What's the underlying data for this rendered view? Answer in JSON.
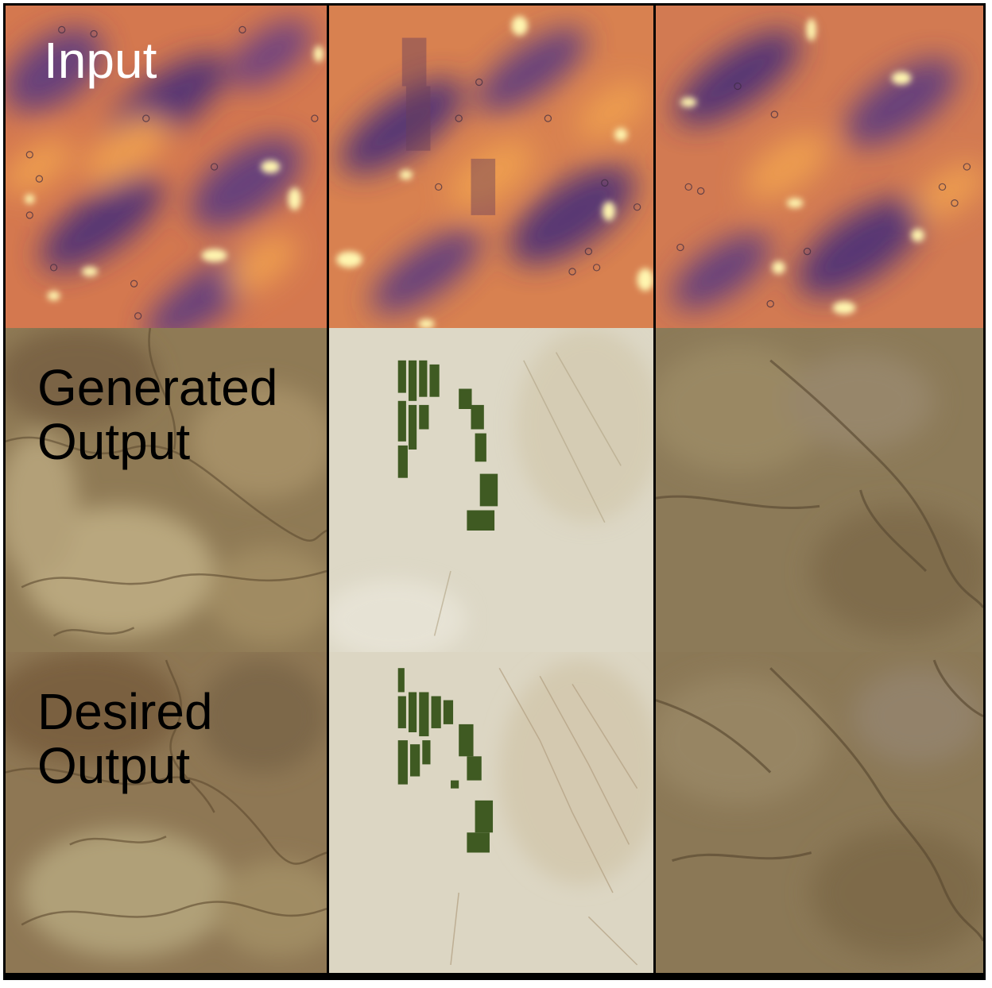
{
  "rows": {
    "input": {
      "label": "Input"
    },
    "generated": {
      "line1": "Generated",
      "line2": "Output"
    },
    "desired": {
      "line1": "Desired",
      "line2": "Output"
    }
  },
  "colors": {
    "thermal_low": "#4a2d78",
    "thermal_mid": "#b45a6a",
    "thermal_high": "#f0a050",
    "thermal_peak": "#fff6b0",
    "terrain_brown": "#8f7a55",
    "terrain_light": "#ddd8c6",
    "crop_green": "#3f5a22"
  }
}
